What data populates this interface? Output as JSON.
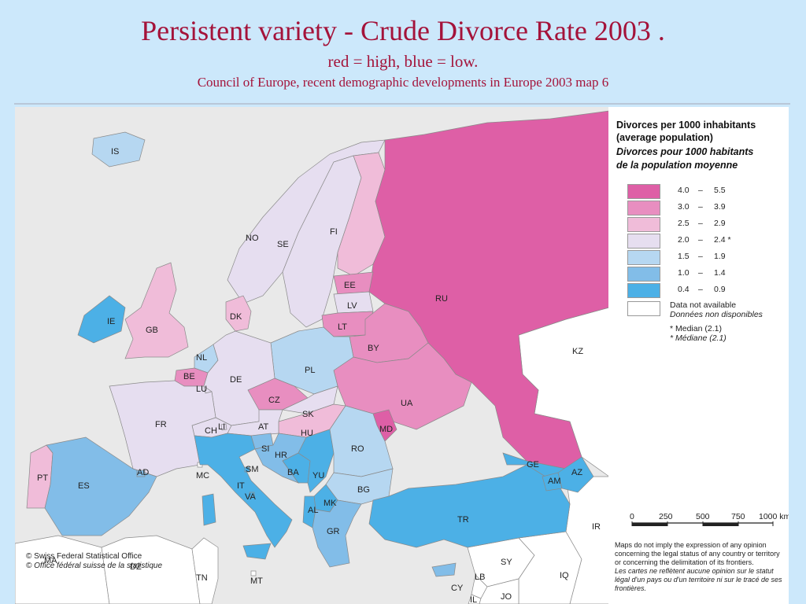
{
  "header": {
    "title": "Persistent variety - Crude Divorce Rate 2003 .",
    "subtitle": "red = high, blue = low.",
    "source": "Council of Europe, recent demographic developments in Europe 2003 map 6"
  },
  "colors": {
    "c1": "#de5fa6",
    "c2": "#e88ec0",
    "c3": "#f0bcd9",
    "c4": "#e6def0",
    "c5": "#b6d7f1",
    "c6": "#82bde8",
    "c7": "#4cb0e6",
    "na": "#ffffff",
    "sea": "#e9e9e9",
    "outside": "#ffffff"
  },
  "legend": {
    "title_en_1": "Divorces per 1000 inhabitants",
    "title_en_2": "(average population)",
    "title_fr_1": "Divorces pour 1000 habitants",
    "title_fr_2": "de la population moyenne",
    "classes": [
      {
        "from": "4.0",
        "dash": "–",
        "to": "5.5",
        "mark": "",
        "color": "#de5fa6"
      },
      {
        "from": "3.0",
        "dash": "–",
        "to": "3.9",
        "mark": "",
        "color": "#e88ec0"
      },
      {
        "from": "2.5",
        "dash": "–",
        "to": "2.9",
        "mark": "",
        "color": "#f0bcd9"
      },
      {
        "from": "2.0",
        "dash": "–",
        "to": "2.4",
        "mark": "*",
        "color": "#e6def0"
      },
      {
        "from": "1.5",
        "dash": "–",
        "to": "1.9",
        "mark": "",
        "color": "#b6d7f1"
      },
      {
        "from": "1.0",
        "dash": "–",
        "to": "1.4",
        "mark": "",
        "color": "#82bde8"
      },
      {
        "from": "0.4",
        "dash": "–",
        "to": "0.9",
        "mark": "",
        "color": "#4cb0e6"
      }
    ],
    "na_en": "Data not available",
    "na_fr": "Données non disponibles",
    "median_en": "* Median (2.1)",
    "median_fr": "* Médiane (2.1)",
    "scale_ticks": [
      "0",
      "250",
      "500",
      "750",
      "1000 km"
    ],
    "disclaimer_en": "Maps do not imply the expression of any opinion concerning the legal status of any country or territory or concerning the delimitation of its frontiers.",
    "disclaimer_fr": "Les cartes ne reflètent aucune opinion sur le statut légal d'un pays ou d'un territoire ni sur le tracé de ses frontières."
  },
  "copyright": {
    "line1": "© Swiss Federal Statistical Office",
    "line2": "© Office fédéral suisse de la statistique"
  },
  "countries": [
    {
      "code": "IS",
      "class": 5
    },
    {
      "code": "NO",
      "class": 4
    },
    {
      "code": "SE",
      "class": 4
    },
    {
      "code": "FI",
      "class": 3
    },
    {
      "code": "RU",
      "class": 1
    },
    {
      "code": "EE",
      "class": 2
    },
    {
      "code": "LV",
      "class": 4
    },
    {
      "code": "LT",
      "class": 2
    },
    {
      "code": "DK",
      "class": 3
    },
    {
      "code": "GB",
      "class": 3
    },
    {
      "code": "IE",
      "class": 7
    },
    {
      "code": "NL",
      "class": 5
    },
    {
      "code": "BE",
      "class": 2
    },
    {
      "code": "LU",
      "class": 4
    },
    {
      "code": "DE",
      "class": 4
    },
    {
      "code": "PL",
      "class": 5
    },
    {
      "code": "BY",
      "class": 2
    },
    {
      "code": "UA",
      "class": 2
    },
    {
      "code": "CZ",
      "class": 2
    },
    {
      "code": "SK",
      "class": 4
    },
    {
      "code": "HU",
      "class": 3
    },
    {
      "code": "MD",
      "class": 1
    },
    {
      "code": "FR",
      "class": 4
    },
    {
      "code": "CH",
      "class": 4
    },
    {
      "code": "LI",
      "class": 4
    },
    {
      "code": "AT",
      "class": 4
    },
    {
      "code": "SI",
      "class": 6
    },
    {
      "code": "HR",
      "class": 6
    },
    {
      "code": "BA",
      "class": 7
    },
    {
      "code": "YU",
      "class": 7
    },
    {
      "code": "RO",
      "class": 5
    },
    {
      "code": "BG",
      "class": 5
    },
    {
      "code": "PT",
      "class": 3
    },
    {
      "code": "ES",
      "class": 6
    },
    {
      "code": "AD",
      "class": 6
    },
    {
      "code": "MC",
      "class": 0
    },
    {
      "code": "IT",
      "class": 7
    },
    {
      "code": "SM",
      "class": 7
    },
    {
      "code": "VA",
      "class": 7
    },
    {
      "code": "MK",
      "class": 7
    },
    {
      "code": "AL",
      "class": 7
    },
    {
      "code": "GR",
      "class": 6
    },
    {
      "code": "TR",
      "class": 7
    },
    {
      "code": "GE",
      "class": 7
    },
    {
      "code": "AM",
      "class": 7
    },
    {
      "code": "AZ",
      "class": 7
    },
    {
      "code": "KZ",
      "class": 0
    },
    {
      "code": "IR",
      "class": 0
    },
    {
      "code": "SY",
      "class": 0
    },
    {
      "code": "IQ",
      "class": 0
    },
    {
      "code": "LB",
      "class": 0
    },
    {
      "code": "CY",
      "class": 6
    },
    {
      "code": "JO",
      "class": 0
    },
    {
      "code": "IL",
      "class": 0
    },
    {
      "code": "MA",
      "class": 0
    },
    {
      "code": "DZ",
      "class": 0
    },
    {
      "code": "TN",
      "class": 0
    },
    {
      "code": "MT",
      "class": 0
    }
  ]
}
